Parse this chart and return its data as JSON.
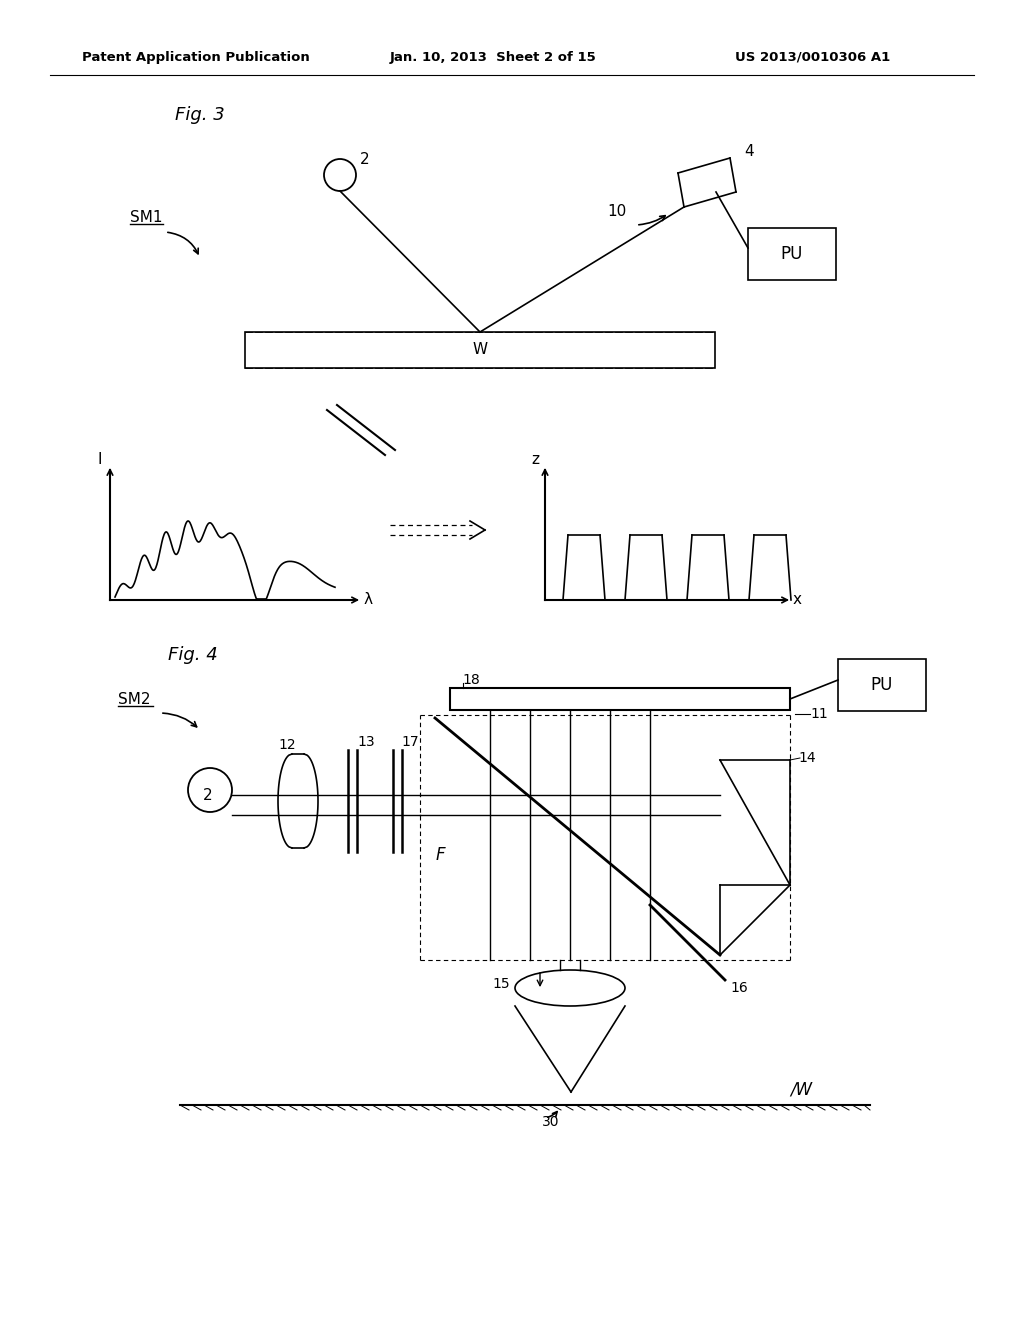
{
  "bg_color": "#ffffff",
  "text_color": "#000000",
  "line_color": "#000000",
  "header_left": "Patent Application Publication",
  "header_mid": "Jan. 10, 2013  Sheet 2 of 15",
  "header_right": "US 2013/0010306 A1"
}
